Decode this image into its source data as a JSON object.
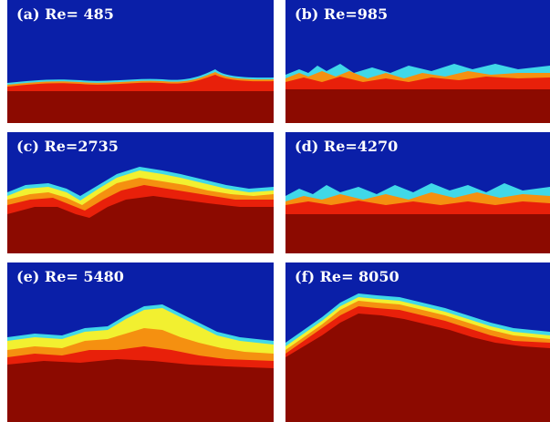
{
  "figure": {
    "panels": [
      {
        "id": "a",
        "label": "(a) Re= 485"
      },
      {
        "id": "b",
        "label": "(b) Re=985"
      },
      {
        "id": "c",
        "label": "(c) Re=2735"
      },
      {
        "id": "d",
        "label": "(d) Re=4270"
      },
      {
        "id": "e",
        "label": "(e) Re= 5480"
      },
      {
        "id": "f",
        "label": "(f) Re= 8050"
      }
    ],
    "colors": {
      "background": "#0a1fa8",
      "liquid": "#8c0a00",
      "interface_red": "#e8200a",
      "interface_orange": "#f59010",
      "interface_yellow": "#f2f030",
      "interface_cyan": "#40d8e8"
    }
  }
}
